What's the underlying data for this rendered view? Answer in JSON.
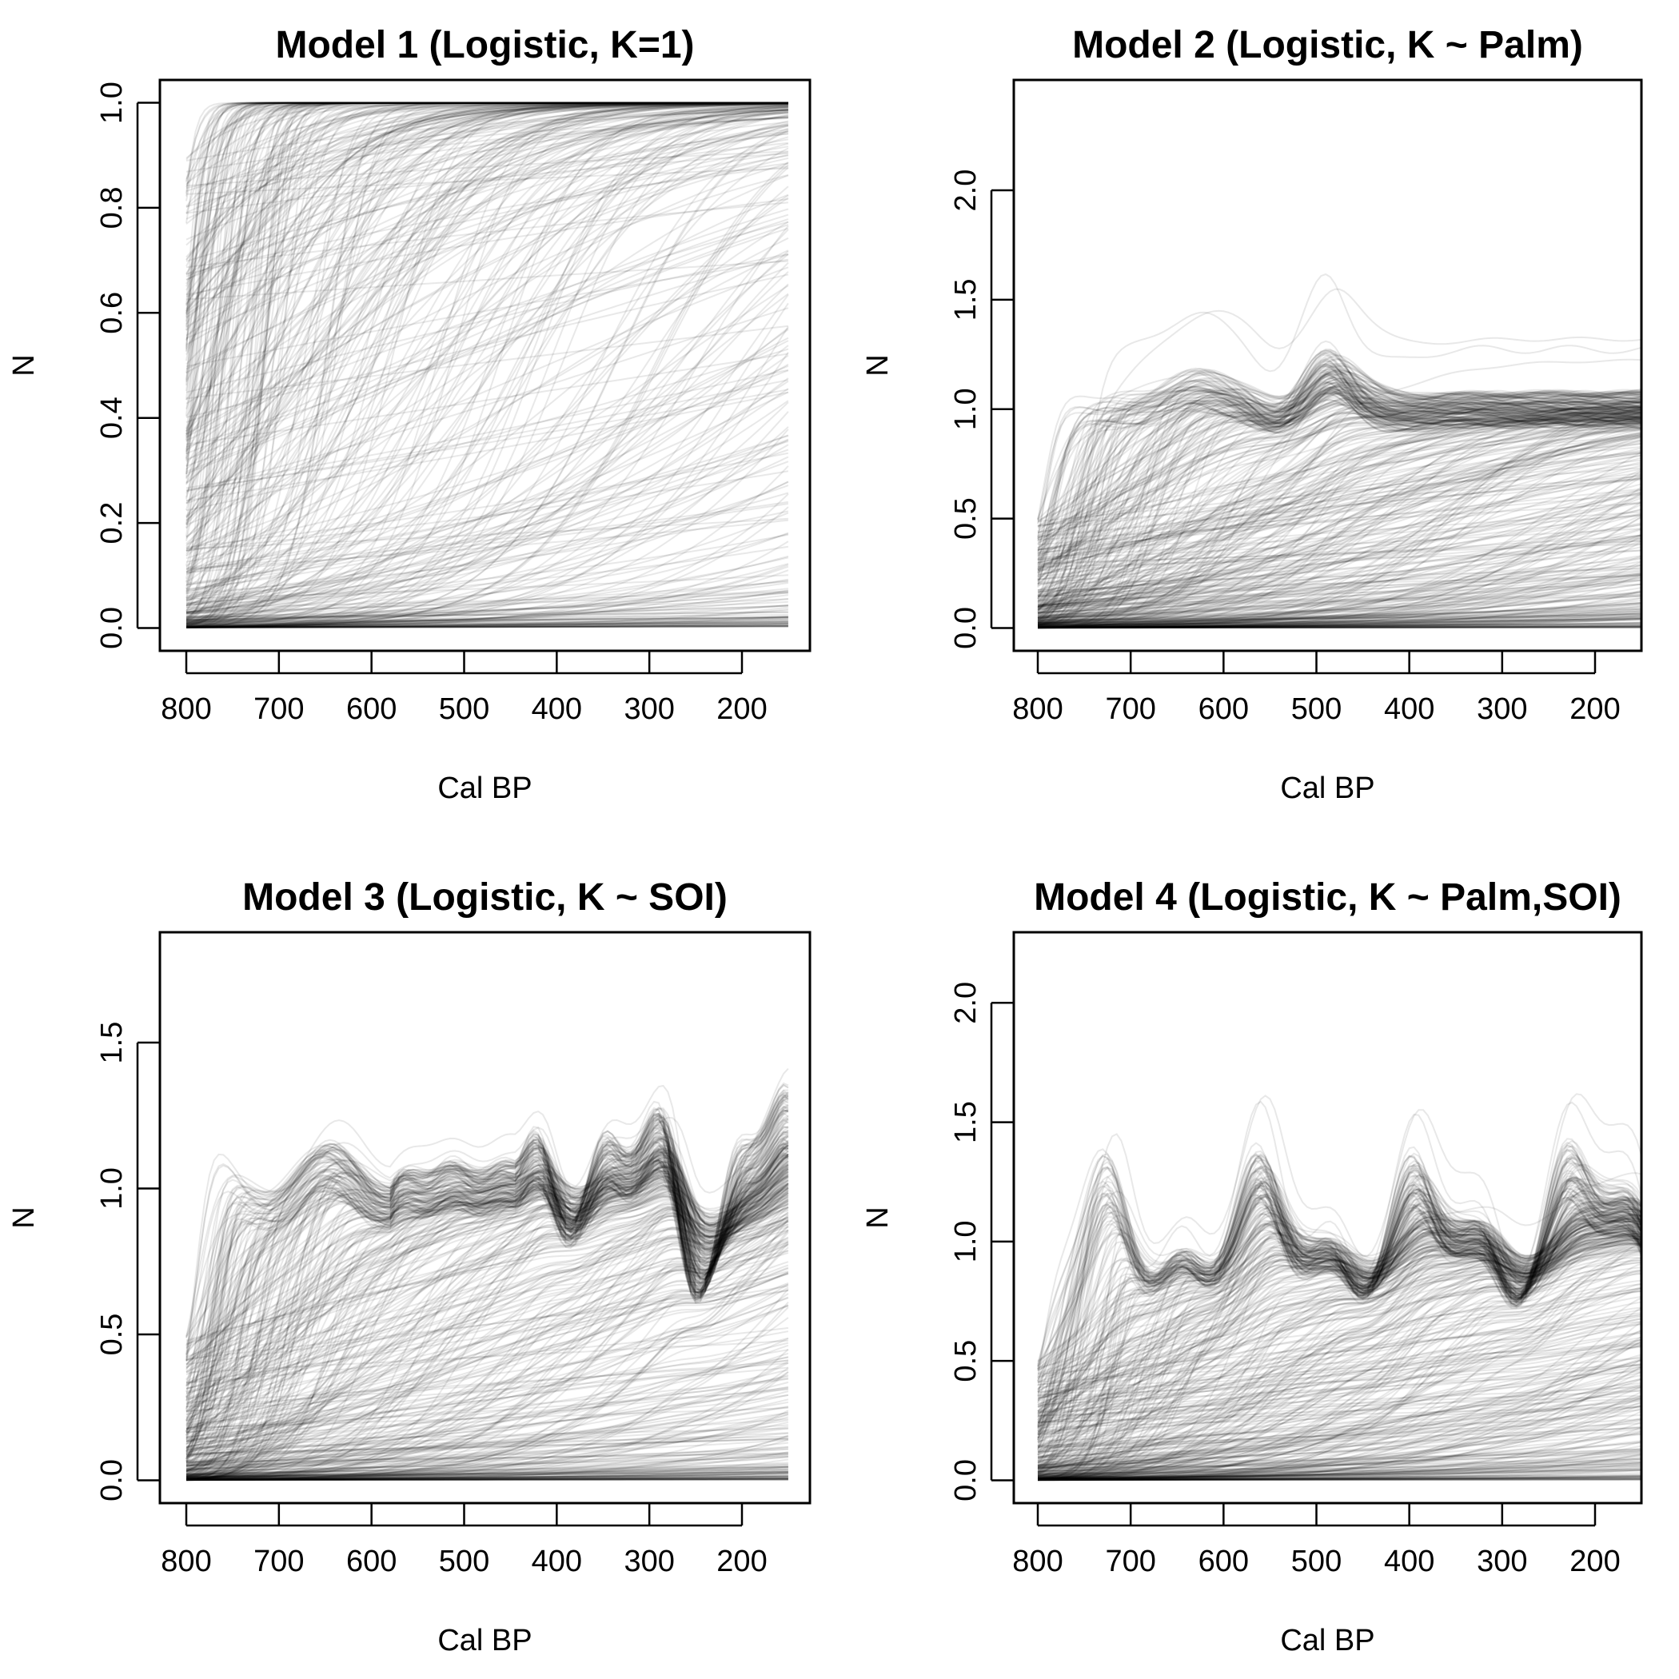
{
  "figure": {
    "line_color": "#000000",
    "background": "#ffffff"
  },
  "chart_data": [
    {
      "type": "line",
      "title": "Model 1 (Logistic, K=1)",
      "xlabel": "Cal BP",
      "ylabel": "N",
      "xlim": [
        800,
        150
      ],
      "ylim": [
        0.0,
        1.0
      ],
      "x_ticks": [
        "800",
        "700",
        "600",
        "500",
        "400",
        "300",
        "200"
      ],
      "y_ticks": [
        "0.0",
        "0.2",
        "0.4",
        "0.6",
        "0.8",
        "1.0"
      ],
      "grid": false,
      "n_trajectories": 1000,
      "trajectory_model": "logistic",
      "carrying_capacity": 1.0
    },
    {
      "type": "line",
      "title": "Model 2 (Logistic, K ~ Palm)",
      "xlabel": "Cal BP",
      "ylabel": "N",
      "xlim": [
        800,
        150
      ],
      "ylim": [
        0.0,
        2.4
      ],
      "x_ticks": [
        "800",
        "700",
        "600",
        "500",
        "400",
        "300",
        "200"
      ],
      "y_ticks": [
        "0.0",
        "0.5",
        "1.0",
        "1.5",
        "2.0"
      ],
      "grid": false,
      "n_trajectories": 1000,
      "trajectory_model": "logistic",
      "carrying_capacity": 1.0
    },
    {
      "type": "line",
      "title": "Model 3 (Logistic, K ~ SOI)",
      "xlabel": "Cal BP",
      "ylabel": "N",
      "xlim": [
        800,
        150
      ],
      "ylim": [
        0.0,
        1.8
      ],
      "x_ticks": [
        "800",
        "700",
        "600",
        "500",
        "400",
        "300",
        "200"
      ],
      "y_ticks": [
        "0.0",
        "0.5",
        "1.0",
        "1.5"
      ],
      "grid": false,
      "n_trajectories": 1000,
      "trajectory_model": "logistic",
      "carrying_capacity": 1.0
    },
    {
      "type": "line",
      "title": "Model 4 (Logistic, K ~ Palm,SOI)",
      "xlabel": "Cal BP",
      "ylabel": "N",
      "xlim": [
        800,
        150
      ],
      "ylim": [
        0.0,
        2.2
      ],
      "x_ticks": [
        "800",
        "700",
        "600",
        "500",
        "400",
        "300",
        "200"
      ],
      "y_ticks": [
        "0.0",
        "0.5",
        "1.0",
        "1.5",
        "2.0"
      ],
      "grid": false,
      "n_trajectories": 1000,
      "trajectory_model": "logistic",
      "carrying_capacity": 1.0
    }
  ]
}
